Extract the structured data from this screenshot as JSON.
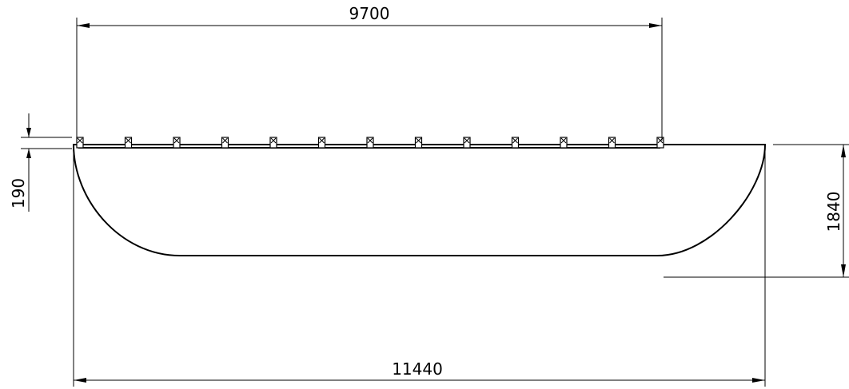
{
  "drawing": {
    "dimensions": {
      "top_width": "9700",
      "overall_width": "11440",
      "height": "1840",
      "rail_height": "190"
    },
    "rail": {
      "post_count": 13
    },
    "colors": {
      "line": "#000000",
      "background": "#ffffff"
    }
  }
}
